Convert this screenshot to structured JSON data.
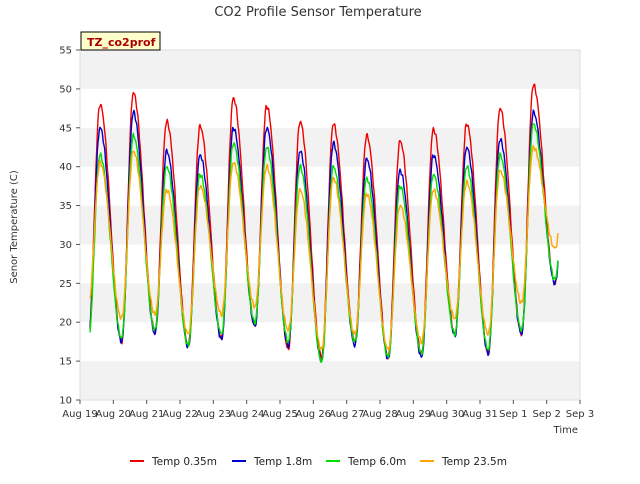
{
  "chart_data": {
    "type": "line",
    "title": "CO2 Profile Sensor Temperature",
    "xlabel": "Time",
    "ylabel": "Senor Temperature (C)",
    "site_label": "TZ_co2prof",
    "ylim": [
      10,
      55
    ],
    "yticks": [
      10,
      15,
      20,
      25,
      30,
      35,
      40,
      45,
      50,
      55
    ],
    "xlim": [
      "Aug 19",
      "Sep 3"
    ],
    "x_tick_labels": [
      "Aug 19",
      "Aug 20",
      "Aug 21",
      "Aug 22",
      "Aug 23",
      "Aug 24",
      "Aug 25",
      "Aug 26",
      "Aug 27",
      "Aug 28",
      "Aug 29",
      "Aug 30",
      "Aug 31",
      "Sep 1",
      "Sep 2",
      "Sep 3"
    ],
    "grid": "horizontal bands",
    "legend_position": "bottom",
    "x": [
      "Aug 19",
      "Aug 20",
      "Aug 21",
      "Aug 22",
      "Aug 23",
      "Aug 24",
      "Aug 25",
      "Aug 26",
      "Aug 27",
      "Aug 28",
      "Aug 29",
      "Aug 30",
      "Aug 31",
      "Sep 1",
      "Sep 2"
    ],
    "series": [
      {
        "name": "Temp 0.35m",
        "color": "#ee0000",
        "daily_min": [
          17.8,
          17.5,
          18.8,
          17.0,
          18.0,
          19.5,
          16.5,
          15.5,
          17.5,
          15.5,
          16.0,
          18.5,
          16.0,
          18.5,
          25.0
        ],
        "daily_max": [
          48.0,
          49.5,
          45.8,
          45.2,
          48.8,
          47.8,
          45.8,
          45.5,
          44.0,
          43.3,
          44.8,
          45.5,
          47.5,
          50.5,
          45.0
        ]
      },
      {
        "name": "Temp 1.8m",
        "color": "#0000cc",
        "daily_min": [
          17.8,
          17.5,
          18.5,
          16.8,
          17.8,
          19.5,
          17.0,
          15.0,
          17.0,
          15.3,
          15.5,
          18.3,
          16.0,
          18.5,
          25.0
        ],
        "daily_max": [
          45.0,
          47.0,
          42.0,
          41.5,
          45.0,
          45.0,
          42.0,
          43.0,
          41.0,
          39.5,
          41.5,
          42.5,
          43.5,
          47.0,
          43.0
        ]
      },
      {
        "name": "Temp 6.0m",
        "color": "#00dd00",
        "daily_min": [
          17.5,
          18.0,
          19.0,
          17.0,
          18.5,
          20.0,
          17.5,
          15.0,
          17.5,
          15.5,
          16.0,
          18.5,
          16.5,
          19.0,
          25.5
        ],
        "daily_max": [
          41.5,
          44.0,
          40.0,
          39.0,
          43.0,
          42.5,
          40.0,
          40.0,
          38.5,
          37.5,
          39.0,
          40.0,
          41.5,
          45.5,
          42.0
        ]
      },
      {
        "name": "Temp 23.5m",
        "color": "#ffa500",
        "daily_min": [
          22.0,
          20.5,
          21.0,
          18.5,
          21.0,
          22.0,
          19.0,
          16.5,
          18.5,
          16.5,
          17.5,
          20.5,
          18.5,
          22.5,
          29.5
        ],
        "daily_max": [
          40.5,
          42.0,
          37.0,
          37.5,
          40.5,
          40.0,
          37.0,
          38.5,
          36.5,
          35.0,
          37.0,
          38.0,
          39.5,
          42.5,
          40.0
        ]
      }
    ]
  }
}
